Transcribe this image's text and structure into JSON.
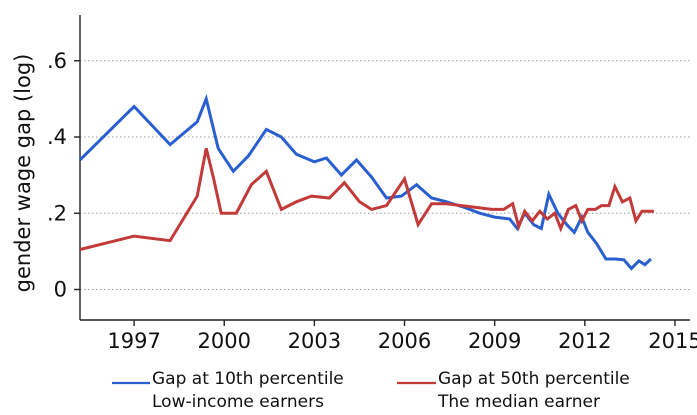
{
  "chart_data": {
    "type": "line",
    "title": "",
    "xlabel": "",
    "ylabel": "gender wage gap (log)",
    "xlim": [
      1995.2,
      2015.5
    ],
    "ylim": [
      -0.08,
      0.72
    ],
    "x_ticks": [
      1997,
      2000,
      2003,
      2006,
      2009,
      2012,
      2015
    ],
    "x_tick_labels": [
      "1997",
      "2000",
      "2003",
      "2006",
      "2009",
      "2012",
      "2015"
    ],
    "y_ticks": [
      0,
      0.2,
      0.4,
      0.6
    ],
    "y_tick_labels": [
      "0",
      ".2",
      ".4",
      ".6"
    ],
    "grid": "horizontal dotted",
    "legend_position": "bottom",
    "series": [
      {
        "name": "Gap at 10th percentile",
        "legend_subtitle": "Low-income earners",
        "color": "#2a5fd0",
        "x": [
          1995.2,
          1997.0,
          1998.2,
          1999.1,
          1999.4,
          1999.8,
          2000.3,
          2000.8,
          2001.4,
          2001.9,
          2002.4,
          2003.0,
          2003.4,
          2003.9,
          2004.4,
          2004.9,
          2005.4,
          2005.9,
          2006.4,
          2006.9,
          2007.4,
          2008.0,
          2008.5,
          2009.0,
          2009.5,
          2009.75,
          2010.0,
          2010.3,
          2010.55,
          2010.8,
          2011.1,
          2011.4,
          2011.65,
          2011.9,
          2012.1,
          2012.4,
          2012.7,
          2013.0,
          2013.3,
          2013.55,
          2013.8,
          2014.0,
          2014.2
        ],
        "y": [
          0.34,
          0.48,
          0.38,
          0.44,
          0.5,
          0.37,
          0.31,
          0.35,
          0.42,
          0.4,
          0.355,
          0.335,
          0.345,
          0.3,
          0.34,
          0.295,
          0.24,
          0.245,
          0.275,
          0.24,
          0.23,
          0.215,
          0.2,
          0.19,
          0.185,
          0.16,
          0.2,
          0.17,
          0.16,
          0.25,
          0.2,
          0.17,
          0.15,
          0.19,
          0.15,
          0.12,
          0.08,
          0.08,
          0.078,
          0.055,
          0.075,
          0.065,
          0.08
        ]
      },
      {
        "name": "Gap at 50th percentile",
        "legend_subtitle": "The median earner",
        "color": "#c23a3a",
        "x": [
          1995.2,
          1997.0,
          1998.2,
          1999.1,
          1999.4,
          1999.65,
          1999.9,
          2000.4,
          2000.9,
          2001.4,
          2001.9,
          2002.4,
          2002.9,
          2003.5,
          2004.0,
          2004.5,
          2004.9,
          2005.4,
          2006.0,
          2006.45,
          2006.9,
          2007.4,
          2007.9,
          2008.4,
          2008.9,
          2009.3,
          2009.6,
          2009.8,
          2010.0,
          2010.25,
          2010.5,
          2010.75,
          2011.0,
          2011.2,
          2011.45,
          2011.7,
          2011.9,
          2012.1,
          2012.35,
          2012.55,
          2012.8,
          2013.0,
          2013.25,
          2013.5,
          2013.7,
          2013.9,
          2014.1,
          2014.3
        ],
        "y": [
          0.105,
          0.14,
          0.128,
          0.245,
          0.37,
          0.29,
          0.2,
          0.2,
          0.275,
          0.31,
          0.21,
          0.23,
          0.245,
          0.24,
          0.28,
          0.23,
          0.21,
          0.22,
          0.29,
          0.17,
          0.225,
          0.225,
          0.22,
          0.215,
          0.21,
          0.21,
          0.225,
          0.165,
          0.205,
          0.18,
          0.205,
          0.185,
          0.2,
          0.16,
          0.21,
          0.22,
          0.18,
          0.21,
          0.21,
          0.22,
          0.22,
          0.27,
          0.23,
          0.24,
          0.18,
          0.205,
          0.205,
          0.205
        ]
      }
    ]
  }
}
